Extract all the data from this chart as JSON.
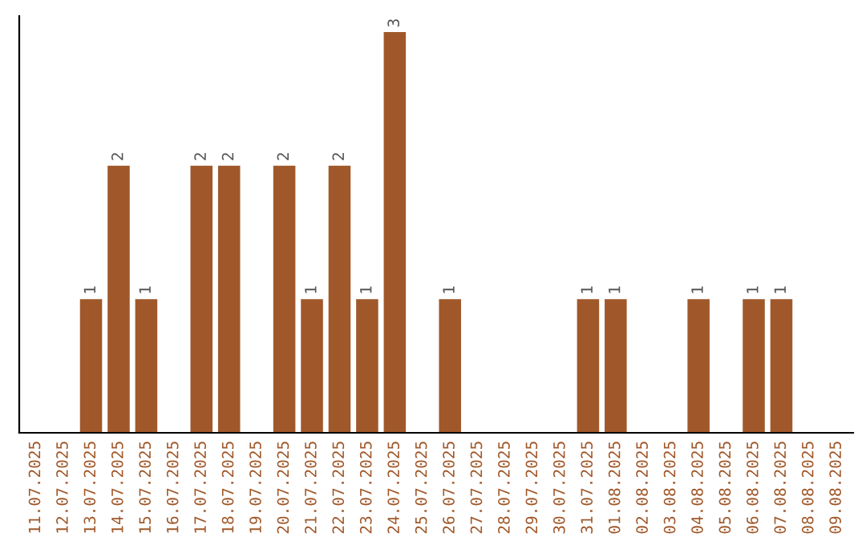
{
  "chart_data": {
    "type": "bar",
    "categories": [
      "11.07.2025",
      "12.07.2025",
      "13.07.2025",
      "14.07.2025",
      "15.07.2025",
      "16.07.2025",
      "17.07.2025",
      "18.07.2025",
      "19.07.2025",
      "20.07.2025",
      "21.07.2025",
      "22.07.2025",
      "23.07.2025",
      "24.07.2025",
      "25.07.2025",
      "26.07.2025",
      "27.07.2025",
      "28.07.2025",
      "29.07.2025",
      "30.07.2025",
      "31.07.2025",
      "01.08.2025",
      "02.08.2025",
      "03.08.2025",
      "04.08.2025",
      "05.08.2025",
      "06.08.2025",
      "07.08.2025",
      "08.08.2025",
      "09.08.2025"
    ],
    "values": [
      0,
      0,
      1,
      2,
      1,
      0,
      2,
      2,
      0,
      2,
      1,
      2,
      1,
      3,
      0,
      1,
      0,
      0,
      0,
      0,
      1,
      1,
      0,
      0,
      1,
      0,
      1,
      1,
      0,
      0
    ],
    "value_labels": [
      null,
      null,
      "1",
      "2",
      "1",
      null,
      "2",
      "2",
      null,
      "2",
      "1",
      "2",
      "1",
      "3",
      null,
      "1",
      null,
      null,
      null,
      null,
      "1",
      "1",
      null,
      null,
      "1",
      null,
      "1",
      "1",
      null,
      null
    ],
    "color": "#a0582a",
    "ylim": [
      0,
      3.12
    ],
    "tick_labels": "x",
    "grid": false,
    "legend": false
  }
}
